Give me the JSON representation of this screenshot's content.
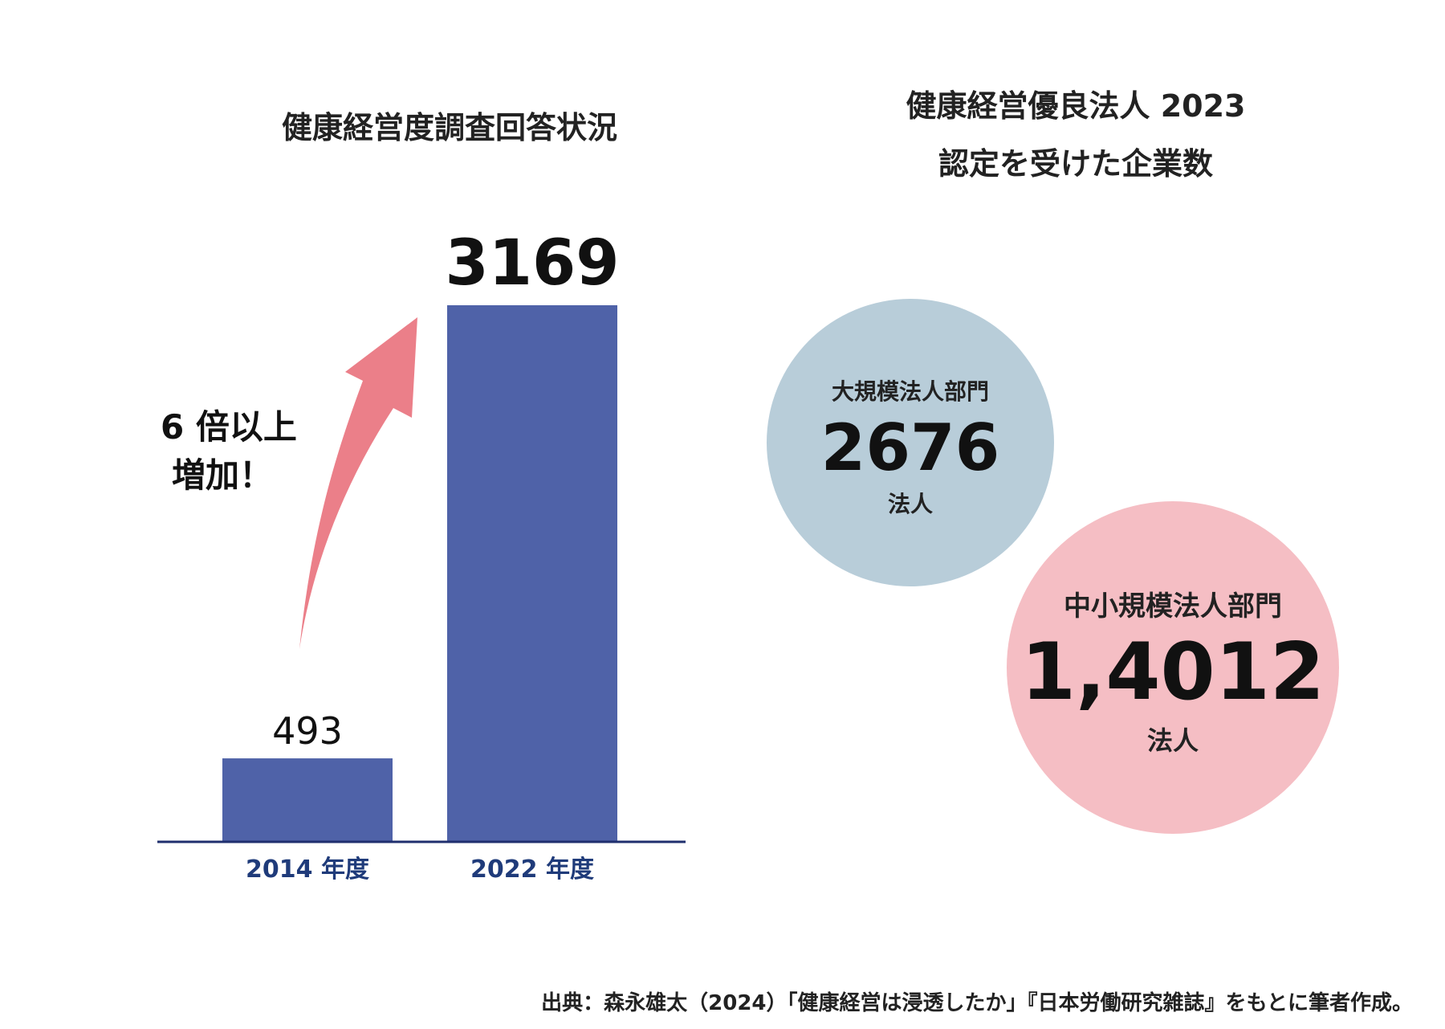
{
  "left_title": "健康経営度調査回答状況",
  "right_title_line1": "健康経営優良法人 2023",
  "right_title_line2": "認定を受けた企業数",
  "increase_note_line1": "6 倍以上",
  "increase_note_line2": "増加！",
  "colors": {
    "bar": "#4f62a8",
    "axis": "#1f2f6e",
    "axis_label": "#1f3b7a",
    "arrow": "#eb7f89",
    "circle_large": "#b8cdd9",
    "circle_small": "#f5bec4"
  },
  "chart_data": {
    "type": "bar",
    "categories": [
      "2014 年度",
      "2022 年度"
    ],
    "values": [
      493,
      3169
    ],
    "data_labels": [
      "493",
      "3169"
    ],
    "title": "健康経営度調査回答状況",
    "xlabel": "",
    "ylabel": "",
    "ylim": [
      0,
      3169
    ]
  },
  "circles": {
    "large": {
      "category": "大規模法人部門",
      "value": "2676",
      "unit": "法人"
    },
    "small": {
      "category": "中小規模法人部門",
      "value": "1,4012",
      "unit": "法人"
    }
  },
  "source_text": "出典：森永雄太（2024）「健康経営は浸透したか」『日本労働研究雑誌』をもとに筆者作成。"
}
